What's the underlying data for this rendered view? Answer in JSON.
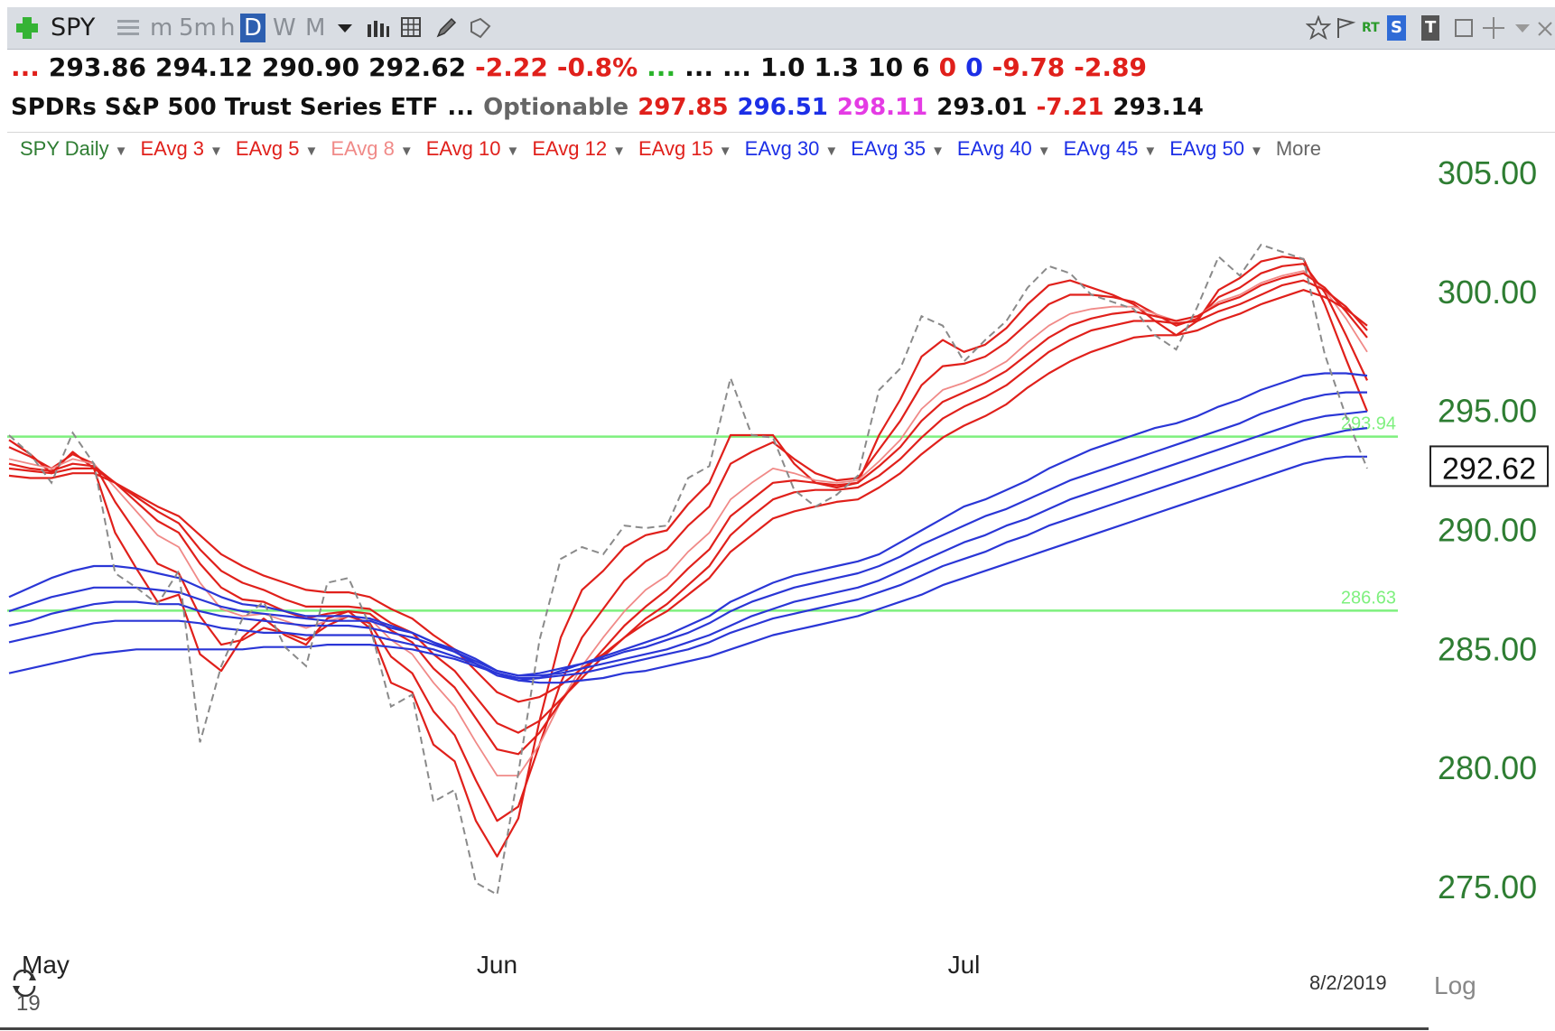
{
  "toolbar": {
    "symbol": "SPY",
    "periods": [
      "m",
      "5m",
      "h",
      "D",
      "W",
      "M"
    ],
    "active_period": "D",
    "right_badges": [
      "RT",
      "S",
      "T"
    ]
  },
  "quote": {
    "row1": [
      {
        "text": "...",
        "color": "#e0201b"
      },
      {
        "text": "293.86",
        "color": "#111111"
      },
      {
        "text": "294.12",
        "color": "#111111"
      },
      {
        "text": "290.90",
        "color": "#111111"
      },
      {
        "text": "292.62",
        "color": "#111111"
      },
      {
        "text": "-2.22",
        "color": "#e0201b"
      },
      {
        "text": "-0.8%",
        "color": "#e0201b"
      },
      {
        "text": "...",
        "color": "#29b32a"
      },
      {
        "text": "...",
        "color": "#111111"
      },
      {
        "text": "...",
        "color": "#111111"
      },
      {
        "text": "1.0",
        "color": "#111111"
      },
      {
        "text": "1.3",
        "color": "#111111"
      },
      {
        "text": "10",
        "color": "#111111"
      },
      {
        "text": "6",
        "color": "#111111"
      },
      {
        "text": "0",
        "color": "#e0201b"
      },
      {
        "text": "0",
        "color": "#1c2fe6"
      },
      {
        "text": "-9.78",
        "color": "#e0201b"
      },
      {
        "text": "-2.89",
        "color": "#e0201b"
      }
    ],
    "row2": [
      {
        "text": "SPDRs S&P 500 Trust Series ETF",
        "color": "#111111"
      },
      {
        "text": "...",
        "color": "#111111"
      },
      {
        "text": "Optionable",
        "color": "#666666"
      },
      {
        "text": "297.85",
        "color": "#e0201b"
      },
      {
        "text": "296.51",
        "color": "#1c2fe6"
      },
      {
        "text": "298.11",
        "color": "#e43be4"
      },
      {
        "text": "293.01",
        "color": "#111111"
      },
      {
        "text": "-7.21",
        "color": "#e0201b"
      },
      {
        "text": "293.14",
        "color": "#111111"
      }
    ]
  },
  "legend": [
    {
      "label": "SPY Daily",
      "color": "#2e7d32"
    },
    {
      "label": "EAvg 3",
      "color": "#e0201b"
    },
    {
      "label": "EAvg 5",
      "color": "#e0201b"
    },
    {
      "label": "EAvg 8",
      "color": "#f08a88"
    },
    {
      "label": "EAvg 10",
      "color": "#e0201b"
    },
    {
      "label": "EAvg 12",
      "color": "#e0201b"
    },
    {
      "label": "EAvg 15",
      "color": "#e0201b"
    },
    {
      "label": "EAvg 30",
      "color": "#1c2fe6"
    },
    {
      "label": "EAvg 35",
      "color": "#1c2fe6"
    },
    {
      "label": "EAvg 40",
      "color": "#1c2fe6"
    },
    {
      "label": "EAvg 45",
      "color": "#1c2fe6"
    },
    {
      "label": "EAvg 50",
      "color": "#1c2fe6"
    },
    {
      "label": "More",
      "color": "#666666"
    }
  ],
  "footer": {
    "date": "8/2/2019",
    "scale_label": "Log",
    "year_label": "19"
  },
  "colors": {
    "up_red": "#e0201b",
    "down_blue": "#2a36d6",
    "support_green": "#7ef07e",
    "axis_green": "#2e7d32",
    "price_dashed": "#8a8a8a"
  },
  "chart_data": {
    "type": "line",
    "title": "SPY Daily",
    "ylim": [
      273.4,
      306.2
    ],
    "y_ticks": [
      305,
      300,
      295,
      290,
      285,
      280,
      275
    ],
    "y_tick_labels": [
      "305.00",
      "300.00",
      "295.00",
      "290.00",
      "285.00",
      "280.00",
      "275.00"
    ],
    "x_tick_labels": [
      "May",
      "Jun",
      "Jul"
    ],
    "last_price": "292.62",
    "horizontal_lines": [
      {
        "value": 293.94,
        "label": "293.94",
        "color": "#7ef07e"
      },
      {
        "value": 286.63,
        "label": "286.63",
        "color": "#7ef07e"
      }
    ],
    "price": [
      294.0,
      293.2,
      292.0,
      294.1,
      292.8,
      288.2,
      287.6,
      286.9,
      288.3,
      281.1,
      284.3,
      286.3,
      287.0,
      285.1,
      284.3,
      287.8,
      288.0,
      286.0,
      282.6,
      283.1,
      278.6,
      279.1,
      275.2,
      274.7,
      279.8,
      285.4,
      288.8,
      289.3,
      289.0,
      290.2,
      290.1,
      290.2,
      292.2,
      292.7,
      296.4,
      294.0,
      293.9,
      291.7,
      291.0,
      291.5,
      292.3,
      295.9,
      296.8,
      299.0,
      298.6,
      297.1,
      298.0,
      298.8,
      300.2,
      301.1,
      300.8,
      299.9,
      299.6,
      299.3,
      298.2,
      297.6,
      299.4,
      301.5,
      300.7,
      302.0,
      301.7,
      301.4,
      297.4,
      294.8,
      292.6
    ],
    "series": [
      {
        "name": "EAvg 3",
        "color": "#e0201b",
        "values": [
          293.8,
          293.2,
          292.4,
          293.3,
          292.6,
          289.9,
          288.4,
          287.0,
          287.3,
          284.8,
          284.1,
          285.5,
          286.3,
          285.6,
          285.2,
          286.3,
          286.6,
          285.9,
          283.6,
          283.2,
          281.0,
          280.3,
          277.8,
          276.3,
          277.9,
          282.0,
          285.5,
          287.5,
          288.3,
          289.3,
          289.8,
          290.0,
          291.1,
          292.0,
          294.0,
          294.0,
          294.0,
          292.8,
          292.0,
          291.8,
          292.0,
          294.0,
          295.5,
          297.3,
          298.0,
          297.5,
          297.8,
          298.5,
          299.5,
          300.3,
          300.5,
          300.2,
          299.9,
          299.5,
          298.8,
          298.2,
          298.8,
          300.1,
          300.6,
          301.3,
          301.5,
          301.4,
          299.5,
          297.2,
          295.0
        ]
      },
      {
        "name": "EAvg 5",
        "color": "#e0201b",
        "values": [
          293.5,
          293.1,
          292.6,
          293.2,
          292.8,
          291.2,
          289.9,
          288.6,
          288.2,
          286.4,
          285.2,
          285.4,
          285.9,
          285.7,
          285.4,
          286.0,
          286.4,
          286.1,
          284.7,
          284.0,
          282.4,
          281.4,
          279.5,
          277.8,
          278.4,
          281.0,
          283.6,
          285.5,
          286.7,
          287.9,
          288.7,
          289.2,
          290.2,
          291.0,
          292.8,
          293.3,
          293.7,
          293.0,
          292.4,
          292.1,
          292.2,
          293.4,
          294.6,
          296.1,
          296.9,
          297.0,
          297.3,
          297.9,
          298.7,
          299.5,
          299.9,
          299.9,
          299.8,
          299.6,
          299.1,
          298.6,
          298.9,
          299.8,
          300.2,
          300.8,
          301.1,
          301.2,
          300.0,
          298.2,
          296.3
        ]
      },
      {
        "name": "EAvg 8",
        "color": "#f08a88",
        "values": [
          293.0,
          292.8,
          292.6,
          293.0,
          292.8,
          291.8,
          290.8,
          289.8,
          289.3,
          287.8,
          286.7,
          286.4,
          286.5,
          286.2,
          285.9,
          286.2,
          286.4,
          286.3,
          285.4,
          284.8,
          283.6,
          282.6,
          281.1,
          279.7,
          279.7,
          281.0,
          282.8,
          284.3,
          285.5,
          286.6,
          287.5,
          288.1,
          289.1,
          289.9,
          291.3,
          292.0,
          292.6,
          292.4,
          292.1,
          292.0,
          292.1,
          292.9,
          293.8,
          295.1,
          295.9,
          296.2,
          296.6,
          297.1,
          297.9,
          298.6,
          299.1,
          299.3,
          299.4,
          299.4,
          299.1,
          298.8,
          299.0,
          299.6,
          299.9,
          300.4,
          300.7,
          300.9,
          300.1,
          298.9,
          297.5
        ]
      },
      {
        "name": "EAvg 10",
        "color": "#e0201b",
        "values": [
          292.8,
          292.6,
          292.5,
          292.8,
          292.7,
          292.0,
          291.2,
          290.4,
          289.9,
          288.6,
          287.6,
          287.1,
          287.0,
          286.6,
          286.3,
          286.5,
          286.6,
          286.5,
          285.8,
          285.3,
          284.2,
          283.4,
          282.1,
          280.8,
          280.6,
          281.5,
          282.8,
          284.0,
          285.0,
          286.0,
          286.8,
          287.5,
          288.4,
          289.2,
          290.6,
          291.3,
          292.0,
          292.1,
          292.0,
          291.9,
          292.0,
          292.7,
          293.5,
          294.6,
          295.4,
          295.8,
          296.2,
          296.7,
          297.4,
          298.1,
          298.6,
          298.9,
          299.1,
          299.2,
          299.0,
          298.8,
          299.0,
          299.5,
          299.8,
          300.3,
          300.6,
          300.8,
          300.2,
          299.2,
          298.1
        ]
      },
      {
        "name": "EAvg 12",
        "color": "#e0201b",
        "values": [
          292.6,
          292.5,
          292.4,
          292.6,
          292.6,
          292.0,
          291.4,
          290.8,
          290.3,
          289.2,
          288.3,
          287.8,
          287.5,
          287.1,
          286.8,
          286.8,
          286.8,
          286.7,
          286.1,
          285.7,
          284.8,
          284.1,
          283.0,
          281.9,
          281.5,
          282.0,
          282.9,
          283.8,
          284.7,
          285.5,
          286.3,
          286.9,
          287.7,
          288.5,
          289.8,
          290.6,
          291.3,
          291.6,
          291.7,
          291.7,
          291.8,
          292.3,
          293.0,
          293.9,
          294.7,
          295.2,
          295.6,
          296.1,
          296.8,
          297.5,
          298.0,
          298.4,
          298.6,
          298.8,
          298.8,
          298.7,
          298.8,
          299.2,
          299.5,
          299.9,
          300.3,
          300.5,
          300.1,
          299.4,
          298.4
        ]
      },
      {
        "name": "EAvg 15",
        "color": "#e0201b",
        "values": [
          292.3,
          292.2,
          292.2,
          292.4,
          292.4,
          292.0,
          291.5,
          291.0,
          290.6,
          289.8,
          289.0,
          288.5,
          288.1,
          287.8,
          287.5,
          287.4,
          287.4,
          287.2,
          286.7,
          286.3,
          285.6,
          285.0,
          284.1,
          283.2,
          282.8,
          283.0,
          283.5,
          284.2,
          284.8,
          285.5,
          286.1,
          286.6,
          287.3,
          288.0,
          289.1,
          289.8,
          290.5,
          290.8,
          291.0,
          291.2,
          291.3,
          291.8,
          292.4,
          293.2,
          293.9,
          294.4,
          294.8,
          295.3,
          296.0,
          296.6,
          297.1,
          297.5,
          297.8,
          298.1,
          298.2,
          298.2,
          298.4,
          298.8,
          299.1,
          299.5,
          299.8,
          300.1,
          299.8,
          299.3,
          298.6
        ]
      },
      {
        "name": "EAvg 30",
        "color": "#2a36d6",
        "values": [
          287.2,
          287.6,
          288.0,
          288.3,
          288.5,
          288.5,
          288.4,
          288.2,
          288.0,
          287.6,
          287.2,
          286.9,
          286.8,
          286.6,
          286.4,
          286.4,
          286.4,
          286.3,
          286.0,
          285.7,
          285.3,
          284.9,
          284.4,
          283.9,
          283.7,
          283.8,
          284.1,
          284.4,
          284.7,
          285.0,
          285.3,
          285.6,
          286.0,
          286.4,
          287.0,
          287.4,
          287.8,
          288.1,
          288.3,
          288.5,
          288.7,
          289.0,
          289.5,
          290.0,
          290.5,
          291.0,
          291.3,
          291.7,
          292.1,
          292.6,
          293.0,
          293.4,
          293.7,
          294.0,
          294.3,
          294.5,
          294.8,
          295.2,
          295.5,
          295.9,
          296.2,
          296.5,
          296.6,
          296.6,
          296.5
        ]
      },
      {
        "name": "EAvg 35",
        "color": "#2a36d6",
        "values": [
          286.6,
          286.9,
          287.2,
          287.4,
          287.6,
          287.6,
          287.6,
          287.5,
          287.4,
          287.1,
          286.8,
          286.6,
          286.5,
          286.4,
          286.3,
          286.2,
          286.2,
          286.2,
          285.9,
          285.7,
          285.3,
          285.0,
          284.6,
          284.1,
          283.9,
          284.0,
          284.2,
          284.4,
          284.6,
          284.9,
          285.1,
          285.4,
          285.7,
          286.1,
          286.6,
          287.0,
          287.3,
          287.6,
          287.8,
          288.0,
          288.2,
          288.5,
          288.9,
          289.4,
          289.8,
          290.2,
          290.6,
          290.9,
          291.3,
          291.7,
          292.1,
          292.4,
          292.7,
          293.0,
          293.3,
          293.6,
          293.9,
          294.2,
          294.5,
          294.9,
          295.2,
          295.5,
          295.7,
          295.8,
          295.8
        ]
      },
      {
        "name": "EAvg 40",
        "color": "#2a36d6",
        "values": [
          286.0,
          286.2,
          286.5,
          286.7,
          286.9,
          287.0,
          287.0,
          286.9,
          286.9,
          286.6,
          286.4,
          286.3,
          286.2,
          286.1,
          286.0,
          286.0,
          286.0,
          285.9,
          285.7,
          285.5,
          285.2,
          284.9,
          284.5,
          284.1,
          283.9,
          283.9,
          284.0,
          284.2,
          284.4,
          284.6,
          284.8,
          285.0,
          285.3,
          285.6,
          286.0,
          286.4,
          286.7,
          287.0,
          287.2,
          287.4,
          287.6,
          287.9,
          288.3,
          288.7,
          289.1,
          289.5,
          289.8,
          290.2,
          290.5,
          290.9,
          291.3,
          291.6,
          291.9,
          292.2,
          292.5,
          292.8,
          293.1,
          293.4,
          293.7,
          294.0,
          294.3,
          294.6,
          294.8,
          294.9,
          295.0
        ]
      },
      {
        "name": "EAvg 45",
        "color": "#2a36d6",
        "values": [
          285.3,
          285.5,
          285.7,
          285.9,
          286.1,
          286.2,
          286.2,
          286.2,
          286.2,
          286.1,
          285.9,
          285.8,
          285.7,
          285.7,
          285.6,
          285.6,
          285.6,
          285.6,
          285.4,
          285.2,
          285.0,
          284.7,
          284.4,
          284.0,
          283.8,
          283.8,
          283.9,
          284.0,
          284.2,
          284.4,
          284.6,
          284.8,
          285.0,
          285.3,
          285.7,
          286.0,
          286.3,
          286.5,
          286.7,
          286.9,
          287.1,
          287.4,
          287.7,
          288.1,
          288.5,
          288.8,
          289.1,
          289.5,
          289.8,
          290.2,
          290.5,
          290.8,
          291.1,
          291.4,
          291.7,
          292.0,
          292.3,
          292.6,
          292.9,
          293.2,
          293.5,
          293.8,
          294.0,
          294.2,
          294.3
        ]
      },
      {
        "name": "EAvg 50",
        "color": "#2a36d6",
        "values": [
          284.0,
          284.2,
          284.4,
          284.6,
          284.8,
          284.9,
          285.0,
          285.0,
          285.0,
          285.0,
          285.0,
          285.0,
          285.1,
          285.1,
          285.1,
          285.2,
          285.2,
          285.2,
          285.1,
          285.0,
          284.8,
          284.6,
          284.3,
          284.0,
          283.7,
          283.6,
          283.6,
          283.7,
          283.8,
          284.0,
          284.1,
          284.3,
          284.5,
          284.7,
          285.0,
          285.3,
          285.6,
          285.8,
          286.0,
          286.2,
          286.4,
          286.7,
          287.0,
          287.3,
          287.7,
          288.0,
          288.3,
          288.6,
          288.9,
          289.2,
          289.5,
          289.8,
          290.1,
          290.4,
          290.7,
          291.0,
          291.3,
          291.6,
          291.9,
          292.2,
          292.5,
          292.8,
          293.0,
          293.1,
          293.1
        ]
      }
    ]
  }
}
